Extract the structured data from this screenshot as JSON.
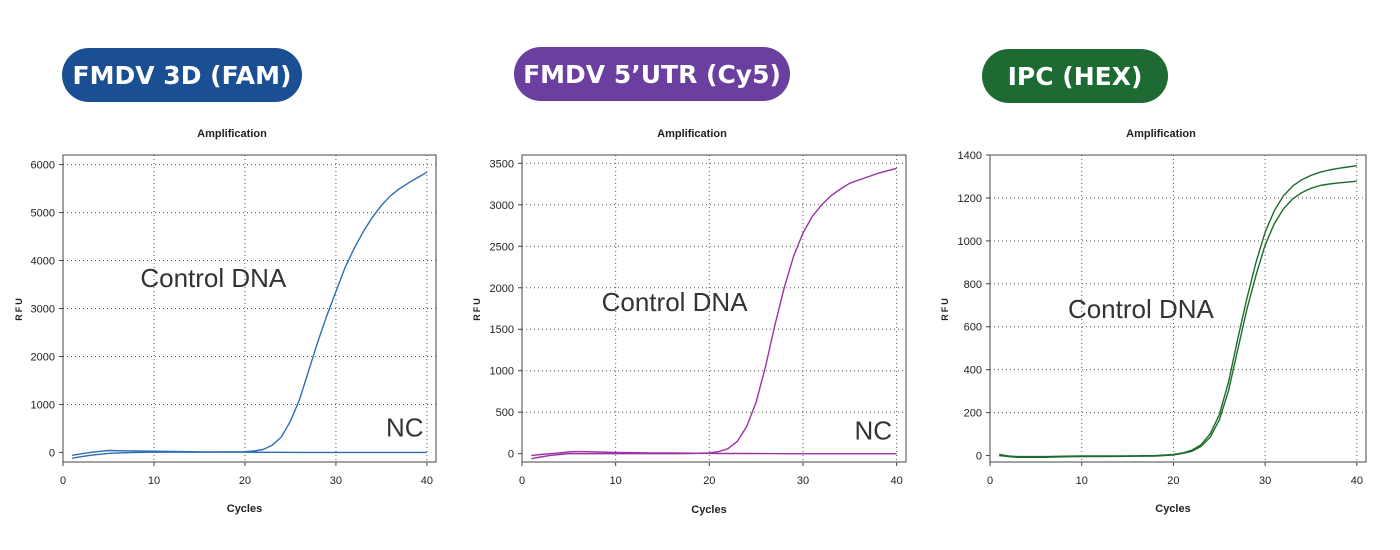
{
  "panels": [
    {
      "badge": "FMDV 3D (FAM)",
      "badge_color": "#1b4f93"
    },
    {
      "badge": "FMDV 5’UTR (Cy5)",
      "badge_color": "#6b3fa0"
    },
    {
      "badge": "IPC (HEX)",
      "badge_color": "#1d6b33"
    }
  ],
  "chart_data": [
    {
      "type": "line",
      "title": "Amplification",
      "xlabel": "Cycles",
      "ylabel": "RFU",
      "xlim": [
        0,
        41
      ],
      "ylim": [
        -200,
        6200
      ],
      "xticks": [
        0,
        10,
        20,
        30,
        40
      ],
      "yticks": [
        0,
        1000,
        2000,
        3000,
        4000,
        5000,
        6000
      ],
      "grid": true,
      "line_color": "#2f6db3",
      "annotations": [
        {
          "text": "Control DNA",
          "x": 8.5,
          "y": 3450
        },
        {
          "text": "NC",
          "x": 35.5,
          "y": 330
        }
      ],
      "series": [
        {
          "x": [
            1,
            2,
            3,
            4,
            5,
            6,
            8,
            10,
            12,
            14,
            16,
            18,
            20,
            21,
            22,
            23,
            24,
            25,
            26,
            27,
            28,
            29,
            30,
            31,
            32,
            33,
            34,
            35,
            36,
            37,
            38,
            39,
            40
          ],
          "y": [
            -120,
            -90,
            -60,
            -40,
            -20,
            -10,
            0,
            5,
            5,
            5,
            5,
            8,
            15,
            30,
            60,
            150,
            320,
            650,
            1100,
            1700,
            2300,
            2850,
            3350,
            3850,
            4250,
            4600,
            4900,
            5150,
            5350,
            5500,
            5620,
            5730,
            5840
          ]
        },
        {
          "x": [
            1,
            2,
            3,
            4,
            5,
            6,
            8,
            10,
            12,
            14,
            16,
            18,
            20,
            22,
            24,
            26,
            28,
            30,
            32,
            34,
            36,
            38,
            40
          ],
          "y": [
            -60,
            -30,
            0,
            20,
            40,
            35,
            30,
            25,
            20,
            15,
            10,
            8,
            5,
            3,
            2,
            0,
            0,
            0,
            0,
            0,
            0,
            0,
            0
          ]
        }
      ]
    },
    {
      "type": "line",
      "title": "Amplification",
      "xlabel": "Cycles",
      "ylabel": "RFU",
      "xlim": [
        0,
        41
      ],
      "ylim": [
        -100,
        3600
      ],
      "xticks": [
        0,
        10,
        20,
        30,
        40
      ],
      "yticks": [
        0,
        500,
        1000,
        1500,
        2000,
        2500,
        3000,
        3500
      ],
      "grid": true,
      "line_color": "#9b32a6",
      "annotations": [
        {
          "text": "Control DNA",
          "x": 8.5,
          "y": 1720
        },
        {
          "text": "NC",
          "x": 35.5,
          "y": 170
        }
      ],
      "series": [
        {
          "x": [
            1,
            2,
            3,
            4,
            5,
            6,
            8,
            10,
            12,
            14,
            16,
            18,
            20,
            21,
            22,
            23,
            24,
            25,
            26,
            27,
            28,
            29,
            30,
            31,
            32,
            33,
            34,
            35,
            36,
            37,
            38,
            39,
            40
          ],
          "y": [
            -60,
            -40,
            -20,
            -10,
            0,
            0,
            0,
            0,
            0,
            0,
            0,
            2,
            10,
            25,
            60,
            150,
            330,
            620,
            1050,
            1550,
            2000,
            2380,
            2660,
            2860,
            3000,
            3110,
            3190,
            3260,
            3300,
            3340,
            3380,
            3410,
            3440
          ]
        },
        {
          "x": [
            1,
            2,
            3,
            4,
            5,
            6,
            8,
            10,
            12,
            14,
            16,
            18,
            20,
            22,
            24,
            26,
            28,
            30,
            32,
            34,
            36,
            38,
            40
          ],
          "y": [
            -20,
            -10,
            0,
            10,
            20,
            25,
            20,
            15,
            12,
            10,
            8,
            6,
            4,
            3,
            2,
            1,
            0,
            0,
            0,
            0,
            0,
            0,
            0
          ]
        }
      ]
    },
    {
      "type": "line",
      "title": "Amplification",
      "xlabel": "Cycles",
      "ylabel": "RFU",
      "xlim": [
        0,
        41
      ],
      "ylim": [
        -30,
        1400
      ],
      "xticks": [
        0,
        10,
        20,
        30,
        40
      ],
      "yticks": [
        0,
        200,
        400,
        600,
        800,
        1000,
        1200,
        1400
      ],
      "grid": true,
      "line_color": "#1e6b2c",
      "annotations": [
        {
          "text": "Control DNA",
          "x": 8.5,
          "y": 640
        }
      ],
      "series": [
        {
          "x": [
            1,
            2,
            3,
            4,
            6,
            8,
            10,
            12,
            14,
            16,
            18,
            19,
            20,
            21,
            22,
            23,
            24,
            25,
            26,
            27,
            28,
            29,
            30,
            31,
            32,
            33,
            34,
            35,
            36,
            37,
            38,
            39,
            40
          ],
          "y": [
            5,
            -2,
            -5,
            -5,
            -5,
            -3,
            -2,
            -2,
            -2,
            -1,
            0,
            2,
            5,
            12,
            25,
            50,
            100,
            190,
            340,
            540,
            730,
            900,
            1040,
            1140,
            1210,
            1255,
            1285,
            1305,
            1320,
            1330,
            1338,
            1344,
            1350
          ]
        },
        {
          "x": [
            1,
            2,
            3,
            4,
            6,
            8,
            10,
            12,
            14,
            16,
            18,
            19,
            20,
            21,
            22,
            23,
            24,
            25,
            26,
            27,
            28,
            29,
            30,
            31,
            32,
            33,
            34,
            35,
            36,
            37,
            38,
            39,
            40
          ],
          "y": [
            0,
            -5,
            -8,
            -8,
            -8,
            -6,
            -5,
            -5,
            -4,
            -3,
            -2,
            0,
            3,
            10,
            20,
            42,
            85,
            165,
            300,
            490,
            680,
            840,
            980,
            1080,
            1150,
            1195,
            1225,
            1245,
            1258,
            1265,
            1270,
            1274,
            1278
          ]
        }
      ]
    }
  ]
}
